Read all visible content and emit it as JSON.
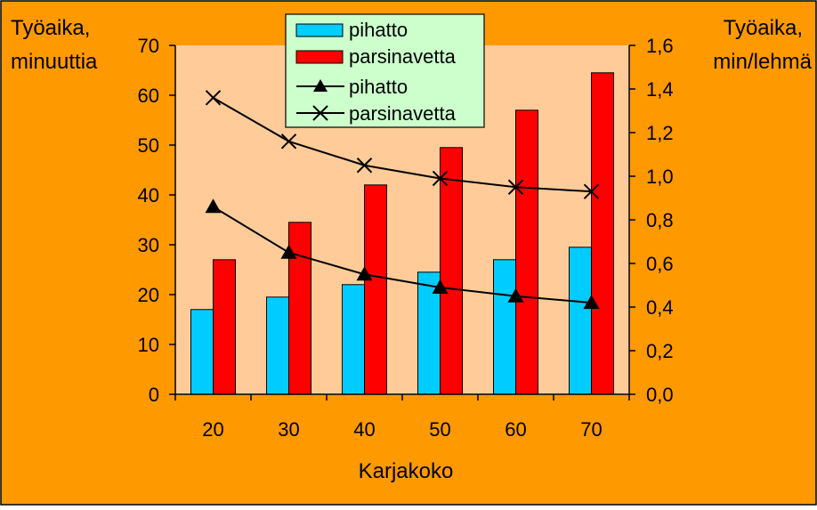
{
  "chart_data": {
    "type": "bar",
    "categories": [
      "20",
      "30",
      "40",
      "50",
      "60",
      "70"
    ],
    "xlabel": "Karjakoko",
    "y_left": {
      "label_lines": [
        "Työaika,",
        "minuuttia"
      ],
      "range": [
        0,
        70
      ],
      "ticks": [
        "0",
        "10",
        "20",
        "30",
        "40",
        "50",
        "60",
        "70"
      ]
    },
    "y_right": {
      "label_lines": [
        "Työaika,",
        "min/lehmä"
      ],
      "range": [
        0,
        1.6
      ],
      "ticks": [
        "0,0",
        "0,2",
        "0,4",
        "0,6",
        "0,8",
        "1,0",
        "1,2",
        "1,4",
        "1,6"
      ]
    },
    "bar_series": [
      {
        "name": "pihatto",
        "axis": "left",
        "color": "#00ccff",
        "values": [
          17,
          19.5,
          22,
          24.5,
          27,
          29.5
        ]
      },
      {
        "name": "parsinavetta",
        "axis": "left",
        "color": "#ff0000",
        "values": [
          27,
          34.5,
          42,
          49.5,
          57,
          64.5
        ]
      }
    ],
    "line_series": [
      {
        "name": "pihatto",
        "axis": "right",
        "marker": "triangle",
        "color": "#000000",
        "values": [
          0.86,
          0.65,
          0.55,
          0.49,
          0.45,
          0.42
        ]
      },
      {
        "name": "parsinavetta",
        "axis": "right",
        "marker": "x",
        "color": "#000000",
        "values": [
          1.36,
          1.16,
          1.05,
          0.99,
          0.95,
          0.93
        ]
      }
    ],
    "legend_position": "top-center",
    "grid": false,
    "colors": {
      "background": "#ff9900",
      "plot_area": "#ffcc99",
      "legend_background": "#ccffcc"
    }
  }
}
